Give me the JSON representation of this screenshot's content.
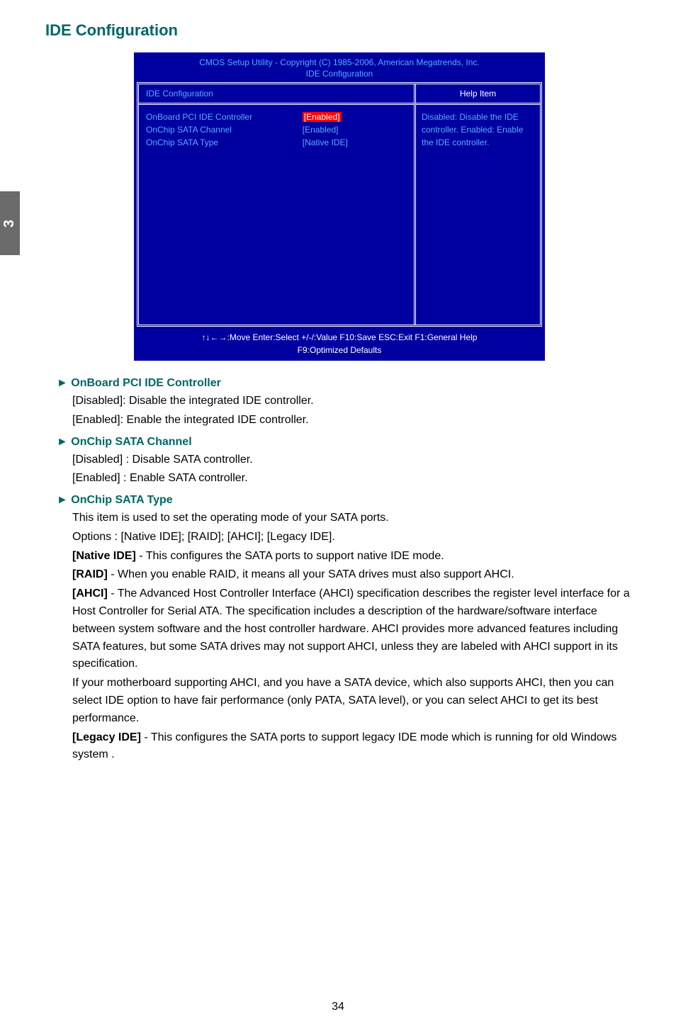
{
  "page": {
    "tab_number": "3",
    "section_title": "IDE Configuration",
    "page_number": "34"
  },
  "bios": {
    "header_line1": "CMOS Setup Utility - Copyright (C) 1985-2006, American Megatrends, Inc.",
    "header_line2": "IDE Configuration",
    "left_header": "IDE Configuration",
    "right_header": "Help Item",
    "rows": [
      {
        "label": "OnBoard PCI IDE Controller",
        "value": "[Enabled]",
        "highlight": true
      },
      {
        "label": "OnChip SATA Channel",
        "value": "[Enabled]",
        "highlight": false
      },
      {
        "label": "OnChip SATA Type",
        "value": "[Native IDE]",
        "highlight": false
      }
    ],
    "help_text": "Disabled: Disable the IDE controller. Enabled: Enable the IDE controller.",
    "footer_line1": "↑↓←→:Move   Enter:Select    +/-/:Value    F10:Save    ESC:Exit    F1:General Help",
    "footer_line2": "F9:Optimized Defaults",
    "colors": {
      "bg": "#0000a0",
      "accent": "#5aa9ff",
      "highlight_bg": "#ff0000"
    }
  },
  "items": [
    {
      "title": "► OnBoard PCI IDE Controller",
      "paragraphs": [
        "[Disabled]: Disable the integrated IDE controller.",
        "[Enabled]: Enable the integrated IDE controller."
      ]
    },
    {
      "title": "► OnChip SATA Channel",
      "paragraphs": [
        "[Disabled] : Disable SATA controller.",
        "[Enabled] : Enable SATA controller."
      ]
    },
    {
      "title": "► OnChip SATA Type",
      "paragraphs": [
        "This item is used to set the operating mode of your SATA ports.",
        "Options : [Native IDE]; [RAID]; [AHCI]; [Legacy IDE].",
        "<b>[Native IDE]</b> - This configures the SATA ports to support native IDE mode.",
        "<b>[RAID]</b> - When you enable RAID, it means all your SATA drives must also support AHCI.",
        "<b>[AHCI]</b> - The Advanced Host Controller Interface (AHCI) specification describes the register level interface for a Host Controller for Serial ATA. The specification includes a description of the hardware/software interface between system software and the host controller hardware. AHCI provides more advanced features including SATA features, but some SATA drives may not support AHCI, unless they are labeled with AHCI support in its specification.",
        "If your motherboard supporting AHCI, and you have a SATA device, which also supports AHCI, then you can select IDE option to have fair performance (only PATA, SATA level), or you can select AHCI to get its best performance.",
        "<b>[Legacy IDE]</b> - This configures the SATA ports to support legacy IDE mode which is running for old Windows system ."
      ]
    }
  ]
}
